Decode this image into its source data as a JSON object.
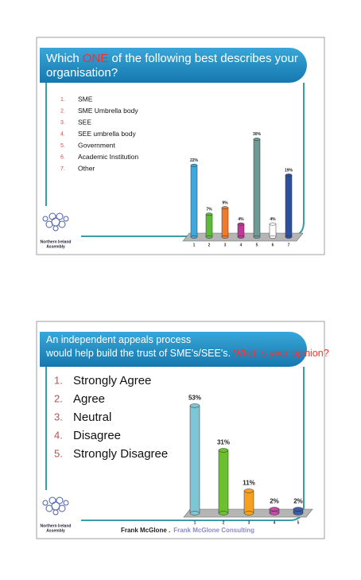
{
  "chart_data": [
    {
      "type": "bar",
      "title_lead": "Which ",
      "title_emphasis": "ONE",
      "title_tail": " of the following best describes your organisation?",
      "option_numbers": [
        "1.",
        "2.",
        "3.",
        "4.",
        "5.",
        "6.",
        "7."
      ],
      "options": [
        "SME",
        "SME Umbrella body",
        "SEE",
        "SEE umbrella body",
        "Government",
        "Academic Institution",
        "Other"
      ],
      "categories": [
        "1",
        "2",
        "3",
        "4",
        "5",
        "6",
        "7"
      ],
      "values": [
        22,
        7,
        9,
        4,
        30,
        4,
        19
      ],
      "value_labels": [
        "22%",
        "7%",
        "9%",
        "4%",
        "30%",
        "4%",
        "19%"
      ],
      "colors": [
        "#3da9dc",
        "#5dbb3a",
        "#f07a2a",
        "#c0399a",
        "#6e9a96",
        "#ffffff",
        "#2c4fa0"
      ]
    },
    {
      "type": "bar",
      "title_lead": "An independent appeals process would help build the trust of SME's/SEE's. ",
      "title_emphasis": "What is your opinion?",
      "title_tail": "",
      "option_numbers": [
        "1.",
        "2.",
        "3.",
        "4.",
        "5."
      ],
      "options": [
        "Strongly Agree",
        "Agree",
        "Neutral",
        "Disagree",
        "Strongly Disagree"
      ],
      "categories": [
        "1",
        "2",
        "3",
        "4",
        "5"
      ],
      "values": [
        53,
        31,
        11,
        2,
        2
      ],
      "value_labels": [
        "53%",
        "31%",
        "11%",
        "2%",
        "2%"
      ],
      "colors": [
        "#7fc6d4",
        "#6cbf2e",
        "#f5a020",
        "#c84aa8",
        "#3a5fb0"
      ]
    }
  ],
  "logo": [
    "Northern Ireland",
    "Assembly"
  ],
  "footer": {
    "name": "Frank McGlone .",
    "company": "Frank McGlone Consulting"
  }
}
